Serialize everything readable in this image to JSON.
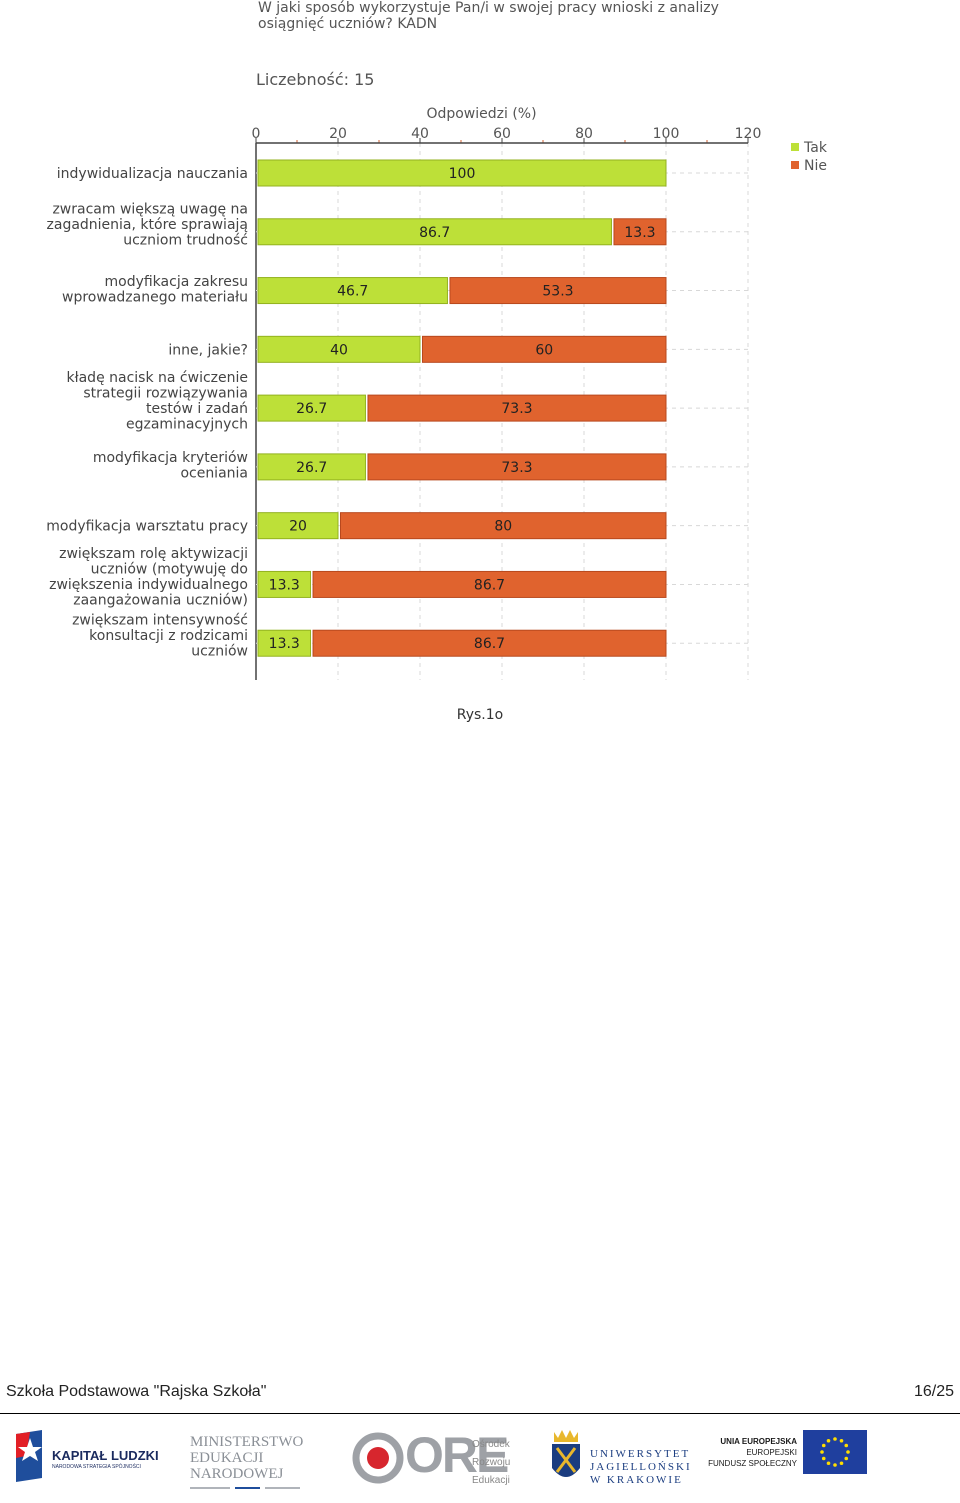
{
  "chart_data": {
    "type": "bar",
    "orientation": "horizontal",
    "stacked": true,
    "title": "W jaki sposób wykorzystuje Pan/i w swojej pracy wnioski z analizy osiągnięć uczniów? KADN",
    "count_label": "Liczebność: 15",
    "xlabel": "Odpowiedzi (%)",
    "xlim": [
      0,
      120
    ],
    "xticks": [
      "0",
      "20",
      "40",
      "60",
      "80",
      "100",
      "120"
    ],
    "grid": true,
    "legend_position": "top-right",
    "categories": [
      "indywidualizacja nauczania",
      "zwracam większą uwagę na zagadnienia, które sprawiają uczniom trudność",
      "modyfikacja zakresu wprowadzanego materiału",
      "inne, jakie?",
      "kładę nacisk na ćwiczenie strategii rozwiązywania testów i zadań egzaminacyjnych",
      "modyfikacja kryteriów oceniania",
      "modyfikacja warsztatu pracy",
      "zwiększam rolę aktywizacji uczniów (motywuję do zwiększenia indywidualnego zaangażowania uczniów)",
      "zwiększam intensywność konsultacji z rodzicami uczniów"
    ],
    "category_lines": [
      [
        "indywidualizacja nauczania"
      ],
      [
        "zwracam większą uwagę na",
        "zagadnienia, które sprawiają",
        "uczniom trudność"
      ],
      [
        "modyfikacja zakresu",
        "wprowadzanego materiału"
      ],
      [
        "inne, jakie?"
      ],
      [
        "kładę nacisk na ćwiczenie",
        "strategii rozwiązywania",
        "testów i zadań",
        "egzaminacyjnych"
      ],
      [
        "modyfikacja kryteriów",
        "oceniania"
      ],
      [
        "modyfikacja warsztatu pracy"
      ],
      [
        "zwiększam rolę aktywizacji",
        "uczniów (motywuję do",
        "zwiększenia indywidualnego",
        "zaangażowania uczniów)"
      ],
      [
        "zwiększam intensywność",
        "konsultacji z rodzicami",
        "uczniów"
      ]
    ],
    "series": [
      {
        "name": "Tak",
        "color": "#bde038",
        "values": [
          100,
          86.7,
          46.7,
          40,
          26.7,
          26.7,
          20,
          13.3,
          13.3
        ]
      },
      {
        "name": "Nie",
        "color": "#e0632e",
        "values": [
          0,
          13.3,
          53.3,
          60,
          73.3,
          73.3,
          80,
          86.7,
          86.7
        ]
      }
    ]
  },
  "caption": "Rys.1o",
  "footer": {
    "school": "Szkoła Podstawowa \"Rajska Szkoła\"",
    "page": "16/25"
  },
  "logos": {
    "kapital_ludzki": {
      "name": "KAPITAŁ LUDZKI",
      "subtitle": "NARODOWA STRATEGIA SPÓJNOŚCI"
    },
    "men": {
      "lines": [
        "MINISTERSTWO",
        "EDUKACJI",
        "NARODOWEJ"
      ]
    },
    "ore": {
      "name": "ORE",
      "lines": [
        "Ośrodek",
        "Rozwoju",
        "Edukacji"
      ]
    },
    "uj": {
      "lines": [
        "UNIWERSYTET",
        "JAGIELLOŃSKI",
        "W KRAKOWIE"
      ]
    },
    "ue": {
      "lines": [
        "UNIA EUROPEJSKA",
        "EUROPEJSKI",
        "FUNDUSZ SPOŁECZNY"
      ]
    }
  }
}
